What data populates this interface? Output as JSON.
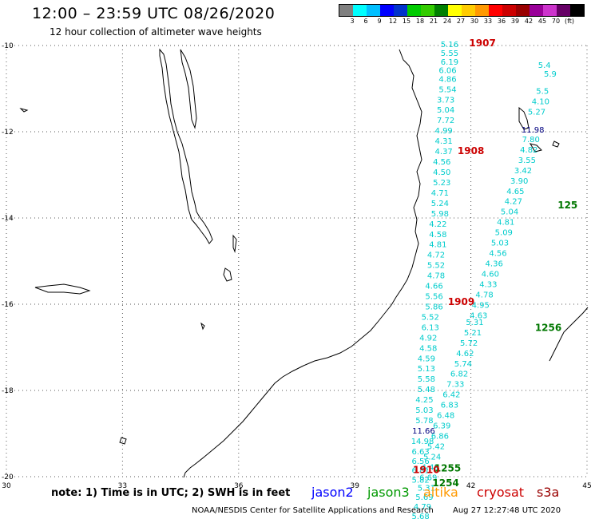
{
  "title": "12:00 – 23:59 UTC 08/26/2020",
  "subtitle": "12 hour collection of altimeter wave heights",
  "legend": {
    "unit": "(ft)",
    "colors": [
      "#808080",
      "#00ffff",
      "#00bfff",
      "#0000ff",
      "#0033cc",
      "#00cc00",
      "#33cc00",
      "#008000",
      "#ffff00",
      "#ffcc00",
      "#ff9900",
      "#ff0000",
      "#cc0000",
      "#990000",
      "#990099",
      "#cc33cc",
      "#660066",
      "#000000"
    ],
    "tick_labels": [
      "3",
      "6",
      "9",
      "12",
      "15",
      "18",
      "21",
      "24",
      "27",
      "30",
      "33",
      "36",
      "39",
      "42",
      "45",
      "70",
      "(ft)"
    ]
  },
  "map": {
    "lon_labels": [
      "30",
      "33",
      "36",
      "39",
      "42",
      "45"
    ],
    "lat_labels": [
      "-10",
      "-12",
      "-14",
      "-16",
      "-18",
      "-20"
    ],
    "lon_range": [
      30,
      45
    ],
    "lat_range": [
      -20,
      -10
    ],
    "grid": true
  },
  "chart_data": {
    "type": "scatter",
    "series": [
      {
        "name": "jason3",
        "color": "#00cccc",
        "points": [
          {
            "lon": 41.45,
            "lat": -10.04,
            "v": "5.16"
          },
          {
            "lon": 41.45,
            "lat": -10.24,
            "v": "5.55"
          },
          {
            "lon": 41.45,
            "lat": -10.44,
            "v": "6.19"
          },
          {
            "lon": 41.4,
            "lat": -10.64,
            "v": "6.06"
          },
          {
            "lon": 41.4,
            "lat": -10.84,
            "v": "4.86"
          },
          {
            "lon": 41.4,
            "lat": -11.08,
            "v": "5.54"
          },
          {
            "lon": 41.35,
            "lat": -11.32,
            "v": "3.73"
          },
          {
            "lon": 41.35,
            "lat": -11.56,
            "v": "5.04"
          },
          {
            "lon": 41.35,
            "lat": -11.8,
            "v": "7.72"
          },
          {
            "lon": 41.3,
            "lat": -12.04,
            "v": "4.99"
          },
          {
            "lon": 41.3,
            "lat": -12.28,
            "v": "4.31"
          },
          {
            "lon": 41.3,
            "lat": -12.52,
            "v": "4.37"
          },
          {
            "lon": 41.25,
            "lat": -12.76,
            "v": "4.56"
          },
          {
            "lon": 41.25,
            "lat": -13.0,
            "v": "4.50"
          },
          {
            "lon": 41.25,
            "lat": -13.24,
            "v": "5.23"
          },
          {
            "lon": 41.2,
            "lat": -13.48,
            "v": "4.71"
          },
          {
            "lon": 41.2,
            "lat": -13.72,
            "v": "5.24"
          },
          {
            "lon": 41.2,
            "lat": -13.96,
            "v": "5.98"
          },
          {
            "lon": 41.15,
            "lat": -14.2,
            "v": "4.22"
          },
          {
            "lon": 41.15,
            "lat": -14.44,
            "v": "4.58"
          },
          {
            "lon": 41.15,
            "lat": -14.68,
            "v": "4.81"
          },
          {
            "lon": 41.1,
            "lat": -14.92,
            "v": "4.72"
          },
          {
            "lon": 41.1,
            "lat": -15.16,
            "v": "5.52"
          },
          {
            "lon": 41.1,
            "lat": -15.4,
            "v": "4.78"
          },
          {
            "lon": 41.05,
            "lat": -15.64,
            "v": "4.66"
          },
          {
            "lon": 41.05,
            "lat": -15.88,
            "v": "5.56"
          },
          {
            "lon": 41.05,
            "lat": -16.12,
            "v": "5.86"
          },
          {
            "lon": 40.95,
            "lat": -16.36,
            "v": "5.52"
          },
          {
            "lon": 40.95,
            "lat": -16.6,
            "v": "6.13"
          },
          {
            "lon": 40.9,
            "lat": -16.84,
            "v": "4.92"
          },
          {
            "lon": 40.9,
            "lat": -17.08,
            "v": "4.58"
          },
          {
            "lon": 40.85,
            "lat": -17.32,
            "v": "4.59"
          },
          {
            "lon": 40.85,
            "lat": -17.56,
            "v": "5.13"
          },
          {
            "lon": 40.85,
            "lat": -17.8,
            "v": "5.58"
          },
          {
            "lon": 40.85,
            "lat": -18.04,
            "v": "5.48"
          },
          {
            "lon": 40.8,
            "lat": -18.28,
            "v": "4.25"
          },
          {
            "lon": 40.8,
            "lat": -18.52,
            "v": "5.03"
          },
          {
            "lon": 40.8,
            "lat": -18.76,
            "v": "5.78"
          },
          {
            "lon": 40.75,
            "lat": -19.24,
            "v": "14.98"
          },
          {
            "lon": 40.7,
            "lat": -19.48,
            "v": "6.63"
          },
          {
            "lon": 40.7,
            "lat": -19.7,
            "v": "6.56"
          },
          {
            "lon": 40.7,
            "lat": -19.92,
            "v": "6.81"
          },
          {
            "lon": 40.7,
            "lat": -20.14,
            "v": "5.82"
          },
          {
            "lon": 43.9,
            "lat": -10.52,
            "v": "5.4"
          },
          {
            "lon": 44.05,
            "lat": -10.72,
            "v": "5.9"
          },
          {
            "lon": 43.85,
            "lat": -11.12,
            "v": "5.5"
          },
          {
            "lon": 43.8,
            "lat": -11.36,
            "v": "4.10"
          },
          {
            "lon": 43.7,
            "lat": -11.6,
            "v": "5.27"
          },
          {
            "lon": 43.55,
            "lat": -12.24,
            "v": "7.80"
          },
          {
            "lon": 43.5,
            "lat": -12.48,
            "v": "4.82"
          },
          {
            "lon": 43.45,
            "lat": -12.72,
            "v": "3.55"
          },
          {
            "lon": 43.35,
            "lat": -12.96,
            "v": "3.42"
          },
          {
            "lon": 43.25,
            "lat": -13.2,
            "v": "3.90"
          },
          {
            "lon": 43.15,
            "lat": -13.44,
            "v": "4.65"
          },
          {
            "lon": 43.1,
            "lat": -13.68,
            "v": "4.27"
          },
          {
            "lon": 43.0,
            "lat": -13.92,
            "v": "5.04"
          },
          {
            "lon": 42.9,
            "lat": -14.16,
            "v": "4.81"
          },
          {
            "lon": 42.85,
            "lat": -14.4,
            "v": "5.09"
          },
          {
            "lon": 42.75,
            "lat": -14.64,
            "v": "5.03"
          },
          {
            "lon": 42.7,
            "lat": -14.88,
            "v": "4.56"
          },
          {
            "lon": 42.6,
            "lat": -15.12,
            "v": "4.36"
          },
          {
            "lon": 42.5,
            "lat": -15.36,
            "v": "4.60"
          },
          {
            "lon": 42.45,
            "lat": -15.6,
            "v": "4.33"
          },
          {
            "lon": 42.35,
            "lat": -15.84,
            "v": "4.78"
          },
          {
            "lon": 42.25,
            "lat": -16.08,
            "v": "4.95"
          },
          {
            "lon": 42.2,
            "lat": -16.32,
            "v": "4.63"
          },
          {
            "lon": 42.1,
            "lat": -16.48,
            "v": "5.31"
          },
          {
            "lon": 42.05,
            "lat": -16.72,
            "v": "5.21"
          },
          {
            "lon": 41.95,
            "lat": -16.96,
            "v": "5.72"
          },
          {
            "lon": 41.85,
            "lat": -17.2,
            "v": "4.62"
          },
          {
            "lon": 41.8,
            "lat": -17.44,
            "v": "5.74"
          },
          {
            "lon": 41.7,
            "lat": -17.68,
            "v": "6.82"
          },
          {
            "lon": 41.6,
            "lat": -17.92,
            "v": "7.33"
          },
          {
            "lon": 41.5,
            "lat": -18.16,
            "v": "6.42"
          },
          {
            "lon": 41.45,
            "lat": -18.4,
            "v": "6.83"
          },
          {
            "lon": 41.35,
            "lat": -18.64,
            "v": "6.48"
          },
          {
            "lon": 41.25,
            "lat": -18.88,
            "v": "6.39"
          },
          {
            "lon": 41.2,
            "lat": -19.12,
            "v": "6.86"
          },
          {
            "lon": 41.1,
            "lat": -19.36,
            "v": "5.42"
          },
          {
            "lon": 41.0,
            "lat": -19.6,
            "v": "5.24"
          },
          {
            "lon": 40.95,
            "lat": -19.84,
            "v": "4.49"
          },
          {
            "lon": 40.9,
            "lat": -20.08,
            "v": "6.69"
          },
          {
            "lon": 40.85,
            "lat": -20.32,
            "v": "5.31"
          },
          {
            "lon": 40.8,
            "lat": -20.54,
            "v": "5.69"
          },
          {
            "lon": 40.75,
            "lat": -20.76,
            "v": "4.79"
          },
          {
            "lon": 40.7,
            "lat": -20.98,
            "v": "5.68"
          }
        ]
      },
      {
        "name": "jason2",
        "color": "#000080",
        "points": [
          {
            "lon": 40.78,
            "lat": -19.0,
            "v": "11.66"
          },
          {
            "lon": 43.6,
            "lat": -12.02,
            "v": "11.98"
          }
        ]
      }
    ],
    "pass_labels": [
      {
        "lon": 42.3,
        "lat": -10.02,
        "text": "1907",
        "color": "#cc0000"
      },
      {
        "lon": 42.0,
        "lat": -12.52,
        "text": "1908",
        "color": "#cc0000"
      },
      {
        "lon": 41.75,
        "lat": -16.02,
        "text": "1909",
        "color": "#cc0000"
      },
      {
        "lon": 44.5,
        "lat": -13.78,
        "text": "125",
        "color": "#007700"
      },
      {
        "lon": 44.0,
        "lat": -16.62,
        "text": "1256",
        "color": "#007700"
      },
      {
        "lon": 41.4,
        "lat": -19.88,
        "text": "1255",
        "color": "#007700"
      },
      {
        "lon": 41.35,
        "lat": -20.22,
        "text": "1254",
        "color": "#007700"
      },
      {
        "lon": 40.85,
        "lat": -19.92,
        "text": "1910",
        "color": "#cc0000"
      }
    ]
  },
  "note": "note:  1) Time is in UTC;  2) SWH is in feet",
  "satellites": [
    {
      "name": "jason2",
      "color": "#0000ff"
    },
    {
      "name": "jason3",
      "color": "#009900"
    },
    {
      "name": "altika",
      "color": "#ff9900"
    },
    {
      "name": "cryosat",
      "color": "#cc0000"
    },
    {
      "name": "s3a",
      "color": "#990000"
    }
  ],
  "footer": {
    "center": "NOAA/NESDIS Center for Satellite Applications and Research",
    "timestamp": "Aug 27 12:27:48 UTC 2020"
  }
}
